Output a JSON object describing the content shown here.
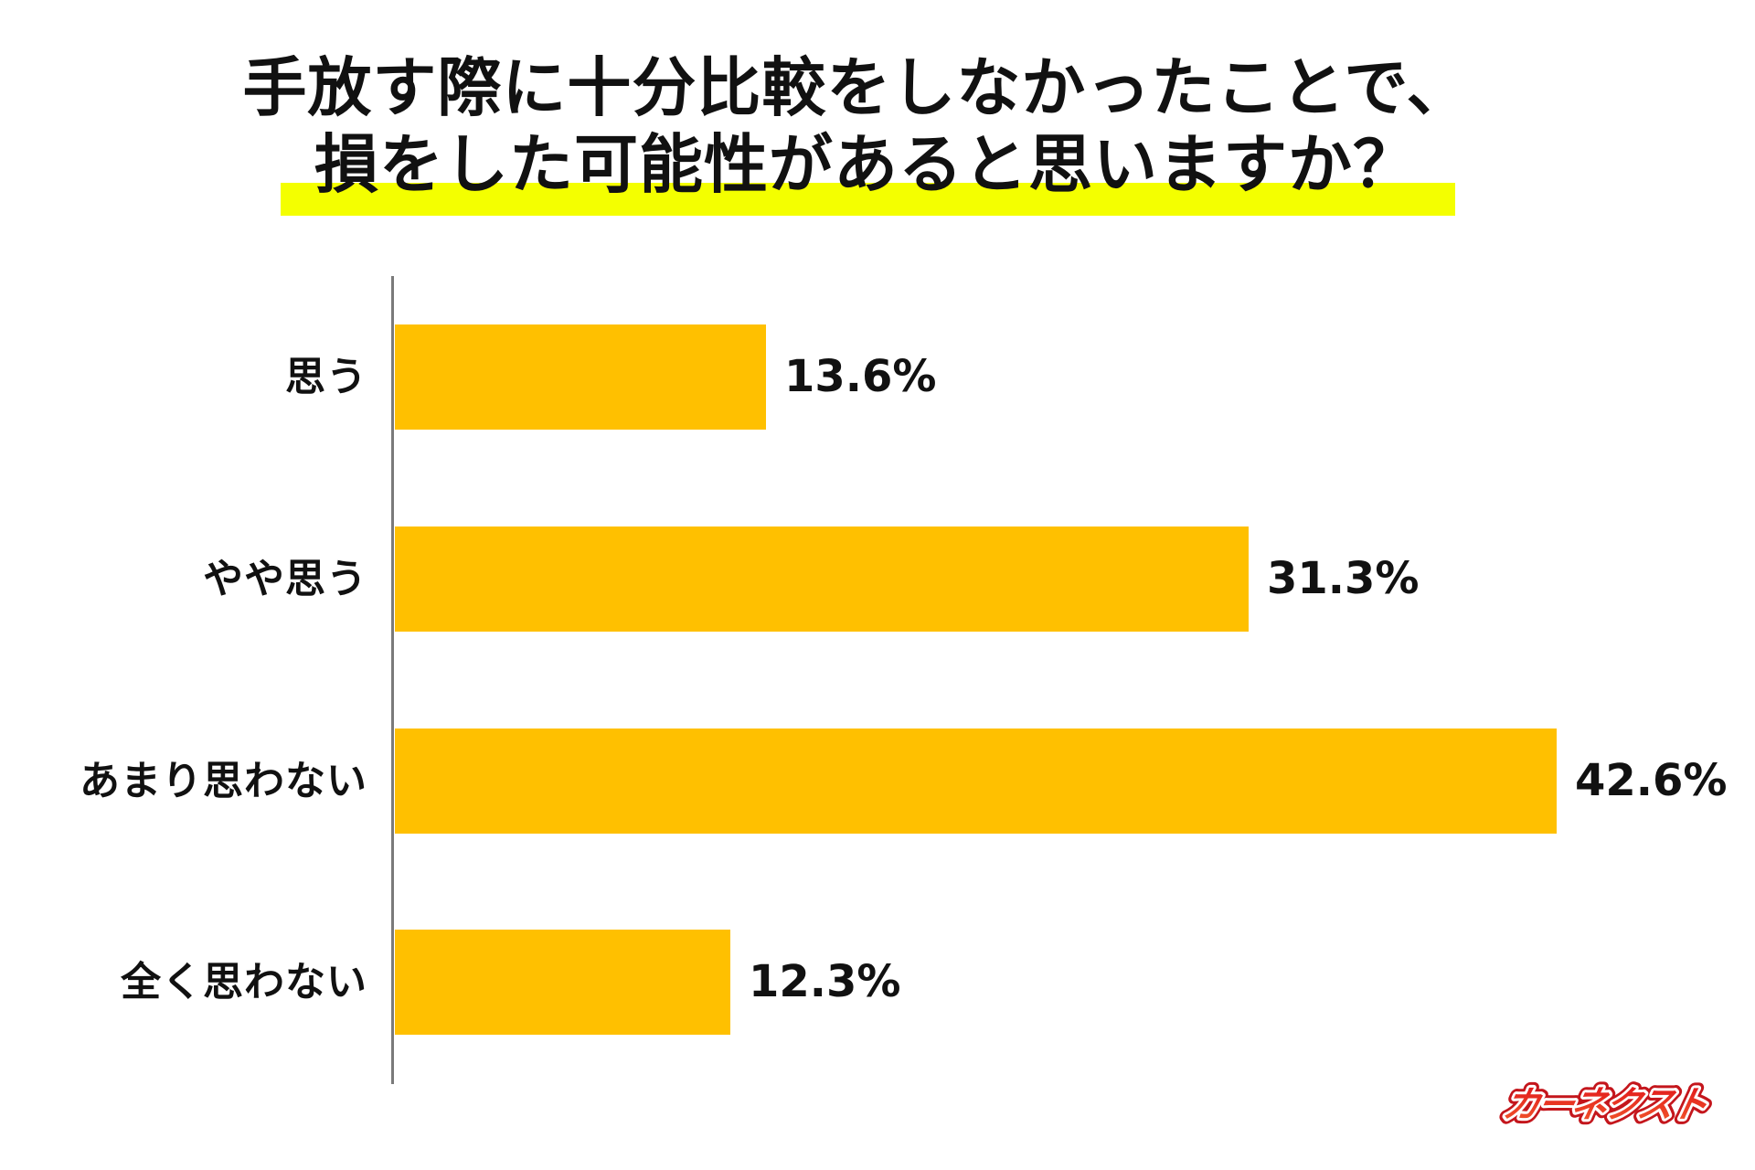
{
  "title": {
    "line1": "手放す際に十分比較をしなかったことで、",
    "line2": "損をした可能性があると思いますか？",
    "highlight_color": "#f4ff00"
  },
  "bars": [
    {
      "label": "思う",
      "value": 13.6,
      "value_label": "13.6%"
    },
    {
      "label": "やや思う",
      "value": 31.3,
      "value_label": "31.3%"
    },
    {
      "label": "あまり思わない",
      "value": 42.6,
      "value_label": "42.6%"
    },
    {
      "label": "全く思わない",
      "value": 12.3,
      "value_label": "12.3%"
    }
  ],
  "colors": {
    "bar": "#ffc000",
    "axis": "#7a7a7a",
    "text": "#111111",
    "logo_red": "#e8231b"
  },
  "logo": {
    "text": "カーネクスト",
    "icon": "brand-logo-icon"
  },
  "chart_data": {
    "type": "bar",
    "orientation": "horizontal",
    "title": "手放す際に十分比較をしなかったことで、損をした可能性があると思いますか？",
    "categories": [
      "思う",
      "やや思う",
      "あまり思わない",
      "全く思わない"
    ],
    "values": [
      13.6,
      31.3,
      42.6,
      12.3
    ],
    "unit": "%",
    "xlabel": "",
    "ylabel": "",
    "xlim": [
      0,
      50
    ],
    "grid": false,
    "legend": null,
    "data_labels": [
      "13.6%",
      "31.3%",
      "42.6%",
      "12.3%"
    ],
    "bar_color": "#ffc000"
  }
}
